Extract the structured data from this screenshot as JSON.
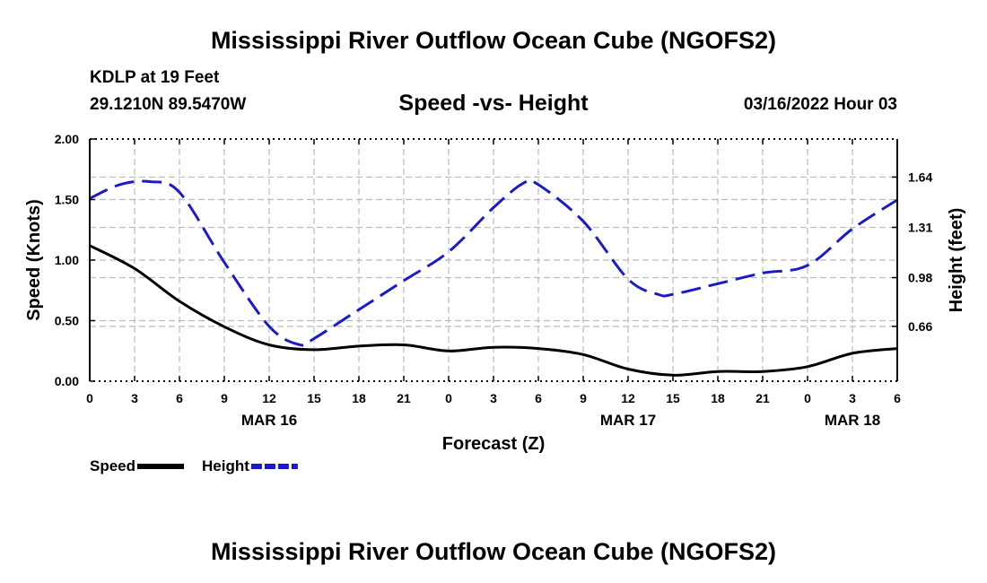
{
  "page": {
    "title": "Mississippi River Outflow Ocean Cube (NGOFS2)",
    "station": "KDLP at 19 Feet",
    "coords": "29.1210N  89.5470W",
    "chart_title": "Speed -vs- Height",
    "datetime": "03/16/2022 Hour 03",
    "footer_title": "Mississippi River Outflow Ocean Cube (NGOFS2)"
  },
  "colors": {
    "speed": "#000000",
    "height": "#1a1acc",
    "grid": "#bbbbbb"
  },
  "chart_data": {
    "type": "line",
    "title": "Speed -vs- Height",
    "xlabel": "Forecast (Z)",
    "ylabel": "Speed (Knots)",
    "y2label": "Height (feet)",
    "xlim": [
      0,
      54
    ],
    "ylim": [
      0,
      2.0
    ],
    "y2lim": [
      0.3,
      1.89
    ],
    "grid": true,
    "x_ticks": [
      0,
      3,
      6,
      9,
      12,
      15,
      18,
      21,
      24,
      27,
      30,
      33,
      36,
      39,
      42,
      45,
      48,
      51,
      54
    ],
    "x_tick_labels": [
      "0",
      "3",
      "6",
      "9",
      "12",
      "15",
      "18",
      "21",
      "0",
      "3",
      "6",
      "9",
      "12",
      "15",
      "18",
      "21",
      "0",
      "3",
      "6"
    ],
    "date_labels": [
      {
        "x": 12,
        "label": "MAR 16"
      },
      {
        "x": 36,
        "label": "MAR 17"
      },
      {
        "x": 51,
        "label": "MAR 18"
      }
    ],
    "y_ticks": [
      0,
      0.5,
      1.0,
      1.5,
      2.0
    ],
    "y_tick_labels": [
      "0.00",
      "0.50",
      "1.00",
      "1.50",
      "2.00"
    ],
    "y2_ticks": [
      0.66,
      0.98,
      1.31,
      1.64
    ],
    "y2_tick_labels": [
      "0.66",
      "0.98",
      "1.31",
      "1.64"
    ],
    "series": [
      {
        "name": "Speed",
        "axis": "left",
        "style": "solid",
        "x": [
          0,
          3,
          6,
          9,
          12,
          15,
          18,
          21,
          24,
          27,
          30,
          33,
          36,
          39,
          42,
          45,
          48,
          51,
          54
        ],
        "values": [
          1.12,
          0.93,
          0.66,
          0.45,
          0.3,
          0.26,
          0.29,
          0.3,
          0.25,
          0.28,
          0.27,
          0.22,
          0.1,
          0.05,
          0.08,
          0.08,
          0.12,
          0.23,
          0.27
        ]
      },
      {
        "name": "Height",
        "axis": "right",
        "style": "dashed",
        "x": [
          0,
          2,
          4,
          6,
          9,
          12,
          14,
          15,
          18,
          21,
          24,
          27,
          29,
          30,
          33,
          36,
          38,
          39,
          42,
          45,
          48,
          51,
          54
        ],
        "values": [
          1.5,
          1.59,
          1.61,
          1.54,
          1.08,
          0.66,
          0.54,
          0.58,
          0.77,
          0.96,
          1.15,
          1.44,
          1.6,
          1.59,
          1.35,
          0.97,
          0.87,
          0.87,
          0.94,
          1.01,
          1.06,
          1.3,
          1.49
        ]
      }
    ],
    "legend": [
      {
        "label": "Speed",
        "style": "solid"
      },
      {
        "label": "Height",
        "style": "dashed"
      }
    ],
    "legend_position": "bottom-left"
  }
}
